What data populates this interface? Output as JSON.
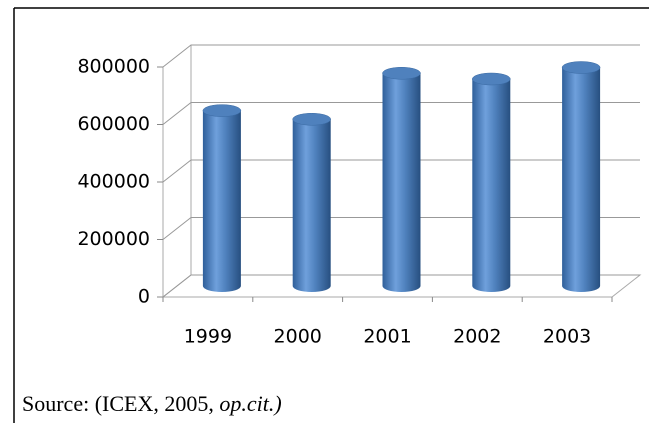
{
  "chart_data": {
    "type": "bar3d",
    "categories": [
      "1999",
      "2000",
      "2001",
      "2002",
      "2003"
    ],
    "values": [
      610000,
      580000,
      740000,
      720000,
      760000
    ],
    "color": "#4f81bd",
    "ylim": [
      0,
      800000
    ],
    "yticks": [
      0,
      200000,
      400000,
      600000,
      800000
    ],
    "grid": true,
    "source": {
      "prefix": "Source: (ICEX, 2005, ",
      "italic": "op.cit.)"
    }
  }
}
